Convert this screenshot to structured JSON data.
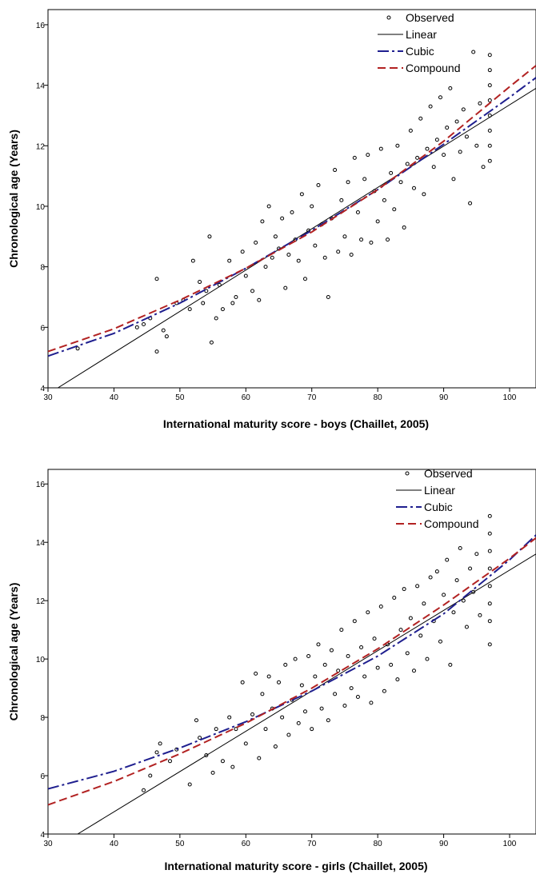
{
  "chart_data": [
    {
      "type": "scatter",
      "xlabel": "International maturity score - boys (Chaillet, 2005)",
      "ylabel": "Chronological age (Years)",
      "xlim": [
        30,
        104
      ],
      "ylim": [
        4,
        16.5
      ],
      "xticks": [
        30,
        40,
        50,
        60,
        70,
        80,
        90,
        100
      ],
      "yticks": [
        4,
        6,
        8,
        10,
        12,
        14,
        16
      ],
      "grid": false,
      "legend_position": "top-right",
      "legend": [
        "Observed",
        "Linear",
        "Cubic",
        "Compound"
      ],
      "series": [
        {
          "name": "Observed",
          "kind": "points",
          "color": "#000000",
          "points": [
            [
              34.5,
              5.3
            ],
            [
              43.5,
              6.0
            ],
            [
              44.5,
              6.1
            ],
            [
              45.5,
              6.3
            ],
            [
              46.5,
              5.2
            ],
            [
              46.5,
              7.6
            ],
            [
              47.5,
              5.9
            ],
            [
              48.0,
              5.7
            ],
            [
              49.5,
              6.8
            ],
            [
              50.5,
              6.9
            ],
            [
              51.5,
              6.6
            ],
            [
              52.0,
              8.2
            ],
            [
              53.0,
              7.5
            ],
            [
              53.5,
              6.8
            ],
            [
              54.0,
              7.2
            ],
            [
              54.5,
              9.0
            ],
            [
              54.8,
              5.5
            ],
            [
              55.5,
              6.3
            ],
            [
              56.0,
              7.4
            ],
            [
              56.5,
              6.6
            ],
            [
              57.5,
              8.2
            ],
            [
              58.0,
              6.8
            ],
            [
              58.5,
              7.0
            ],
            [
              59.5,
              8.5
            ],
            [
              60.0,
              7.7
            ],
            [
              61.0,
              7.2
            ],
            [
              61.5,
              8.8
            ],
            [
              62.0,
              6.9
            ],
            [
              62.5,
              9.5
            ],
            [
              63.0,
              8.0
            ],
            [
              63.5,
              10.0
            ],
            [
              64.0,
              8.3
            ],
            [
              64.5,
              9.0
            ],
            [
              65.0,
              8.6
            ],
            [
              65.5,
              9.6
            ],
            [
              66.0,
              7.3
            ],
            [
              66.5,
              8.4
            ],
            [
              67.0,
              9.8
            ],
            [
              67.5,
              8.9
            ],
            [
              68.0,
              8.2
            ],
            [
              68.5,
              10.4
            ],
            [
              69.0,
              7.6
            ],
            [
              69.5,
              9.2
            ],
            [
              70.0,
              10.0
            ],
            [
              70.5,
              8.7
            ],
            [
              71.0,
              10.7
            ],
            [
              71.5,
              9.4
            ],
            [
              72.0,
              8.3
            ],
            [
              72.5,
              7.0
            ],
            [
              73.0,
              9.6
            ],
            [
              73.5,
              11.2
            ],
            [
              74.0,
              8.5
            ],
            [
              74.5,
              10.2
            ],
            [
              75.0,
              9.0
            ],
            [
              75.5,
              10.8
            ],
            [
              76.0,
              8.4
            ],
            [
              76.5,
              11.6
            ],
            [
              77.0,
              9.8
            ],
            [
              77.5,
              8.9
            ],
            [
              78.0,
              10.9
            ],
            [
              78.5,
              11.7
            ],
            [
              79.0,
              8.8
            ],
            [
              79.5,
              10.5
            ],
            [
              80.0,
              9.5
            ],
            [
              80.5,
              11.9
            ],
            [
              81.0,
              10.2
            ],
            [
              81.5,
              8.9
            ],
            [
              82.0,
              11.1
            ],
            [
              82.5,
              9.9
            ],
            [
              83.0,
              12.0
            ],
            [
              83.5,
              10.8
            ],
            [
              84.0,
              9.3
            ],
            [
              84.5,
              11.4
            ],
            [
              85.0,
              12.5
            ],
            [
              85.5,
              10.6
            ],
            [
              86.0,
              11.6
            ],
            [
              86.5,
              12.9
            ],
            [
              87.0,
              10.4
            ],
            [
              87.5,
              11.9
            ],
            [
              88.0,
              13.3
            ],
            [
              88.5,
              11.3
            ],
            [
              89.0,
              12.2
            ],
            [
              89.5,
              13.6
            ],
            [
              90.0,
              11.7
            ],
            [
              90.5,
              12.6
            ],
            [
              91.0,
              13.9
            ],
            [
              91.5,
              10.9
            ],
            [
              92.0,
              12.8
            ],
            [
              92.5,
              11.8
            ],
            [
              93.0,
              13.2
            ],
            [
              93.5,
              12.3
            ],
            [
              94.0,
              10.1
            ],
            [
              94.5,
              15.1
            ],
            [
              95.0,
              12.0
            ],
            [
              95.5,
              13.4
            ],
            [
              96.0,
              11.3
            ],
            [
              97.0,
              15.0
            ],
            [
              97.0,
              14.5
            ],
            [
              97.0,
              14.0
            ],
            [
              97.0,
              13.5
            ],
            [
              97.0,
              13.0
            ],
            [
              97.0,
              12.5
            ],
            [
              97.0,
              12.0
            ],
            [
              97.0,
              11.5
            ]
          ]
        },
        {
          "name": "Linear",
          "kind": "line",
          "color": "#000000",
          "dash": "solid",
          "points": [
            [
              31.5,
              4.0
            ],
            [
              104.0,
              13.9
            ]
          ]
        },
        {
          "name": "Cubic",
          "kind": "line",
          "color": "#1f1f8f",
          "dash": "longdash",
          "points": [
            [
              30,
              5.05
            ],
            [
              40,
              5.8
            ],
            [
              50,
              6.8
            ],
            [
              60,
              7.95
            ],
            [
              70,
              9.2
            ],
            [
              80,
              10.55
            ],
            [
              90,
              12.05
            ],
            [
              100,
              13.6
            ],
            [
              104,
              14.25
            ]
          ]
        },
        {
          "name": "Compound",
          "kind": "line",
          "color": "#b22222",
          "dash": "dashed",
          "points": [
            [
              30,
              5.2
            ],
            [
              40,
              5.95
            ],
            [
              50,
              6.9
            ],
            [
              60,
              7.95
            ],
            [
              70,
              9.15
            ],
            [
              80,
              10.55
            ],
            [
              90,
              12.15
            ],
            [
              100,
              13.95
            ],
            [
              104,
              14.65
            ]
          ]
        }
      ]
    },
    {
      "type": "scatter",
      "xlabel": "International maturity score - girls (Chaillet, 2005)",
      "ylabel": "Chronological age (Years)",
      "xlim": [
        30,
        104
      ],
      "ylim": [
        4,
        16.5
      ],
      "xticks": [
        30,
        40,
        50,
        60,
        70,
        80,
        90,
        100
      ],
      "yticks": [
        4,
        6,
        8,
        10,
        12,
        14,
        16
      ],
      "grid": false,
      "legend_position": "top-right",
      "legend": [
        "Observed",
        "Linear",
        "Cubic",
        "Compound"
      ],
      "series": [
        {
          "name": "Observed",
          "kind": "points",
          "color": "#000000",
          "points": [
            [
              44.5,
              5.5
            ],
            [
              45.5,
              6.0
            ],
            [
              46.5,
              6.8
            ],
            [
              47.0,
              7.1
            ],
            [
              48.5,
              6.5
            ],
            [
              49.5,
              6.9
            ],
            [
              51.5,
              5.7
            ],
            [
              52.5,
              7.9
            ],
            [
              53.0,
              7.3
            ],
            [
              54.0,
              6.7
            ],
            [
              55.0,
              6.1
            ],
            [
              55.5,
              7.6
            ],
            [
              56.5,
              6.5
            ],
            [
              57.5,
              8.0
            ],
            [
              58.0,
              6.3
            ],
            [
              58.5,
              7.6
            ],
            [
              59.5,
              9.2
            ],
            [
              60.0,
              7.1
            ],
            [
              61.0,
              8.1
            ],
            [
              61.5,
              9.5
            ],
            [
              62.0,
              6.6
            ],
            [
              62.5,
              8.8
            ],
            [
              63.0,
              7.6
            ],
            [
              63.5,
              9.4
            ],
            [
              64.0,
              8.3
            ],
            [
              64.5,
              7.0
            ],
            [
              65.0,
              9.2
            ],
            [
              65.5,
              8.0
            ],
            [
              66.0,
              9.8
            ],
            [
              66.5,
              7.4
            ],
            [
              67.0,
              8.6
            ],
            [
              67.5,
              10.0
            ],
            [
              68.0,
              7.8
            ],
            [
              68.5,
              9.1
            ],
            [
              69.0,
              8.2
            ],
            [
              69.5,
              10.1
            ],
            [
              70.0,
              7.6
            ],
            [
              70.5,
              9.4
            ],
            [
              71.0,
              10.5
            ],
            [
              71.5,
              8.3
            ],
            [
              72.0,
              9.8
            ],
            [
              72.5,
              7.9
            ],
            [
              73.0,
              10.3
            ],
            [
              73.5,
              8.8
            ],
            [
              74.0,
              9.6
            ],
            [
              74.5,
              11.0
            ],
            [
              75.0,
              8.4
            ],
            [
              75.5,
              10.1
            ],
            [
              76.0,
              9.0
            ],
            [
              76.5,
              11.3
            ],
            [
              77.0,
              8.7
            ],
            [
              77.5,
              10.4
            ],
            [
              78.0,
              9.4
            ],
            [
              78.5,
              11.6
            ],
            [
              79.0,
              8.5
            ],
            [
              79.5,
              10.7
            ],
            [
              80.0,
              9.7
            ],
            [
              80.5,
              11.8
            ],
            [
              81.0,
              8.9
            ],
            [
              81.5,
              10.5
            ],
            [
              82.0,
              9.8
            ],
            [
              82.5,
              12.1
            ],
            [
              83.0,
              9.3
            ],
            [
              83.5,
              11.0
            ],
            [
              84.0,
              12.4
            ],
            [
              84.5,
              10.2
            ],
            [
              85.0,
              11.4
            ],
            [
              85.5,
              9.6
            ],
            [
              86.0,
              12.5
            ],
            [
              86.5,
              10.8
            ],
            [
              87.0,
              11.9
            ],
            [
              87.5,
              10.0
            ],
            [
              88.0,
              12.8
            ],
            [
              88.5,
              11.3
            ],
            [
              89.0,
              13.0
            ],
            [
              89.5,
              10.6
            ],
            [
              90.0,
              12.2
            ],
            [
              90.5,
              13.4
            ],
            [
              91.0,
              9.8
            ],
            [
              91.5,
              11.6
            ],
            [
              92.0,
              12.7
            ],
            [
              92.5,
              13.8
            ],
            [
              93.0,
              12.0
            ],
            [
              93.5,
              11.1
            ],
            [
              94.0,
              13.1
            ],
            [
              94.5,
              12.3
            ],
            [
              95.0,
              13.6
            ],
            [
              95.5,
              11.5
            ],
            [
              97.0,
              14.9
            ],
            [
              97.0,
              14.3
            ],
            [
              97.0,
              13.7
            ],
            [
              97.0,
              13.1
            ],
            [
              97.0,
              12.5
            ],
            [
              97.0,
              11.9
            ],
            [
              97.0,
              11.3
            ],
            [
              97.0,
              10.5
            ]
          ]
        },
        {
          "name": "Linear",
          "kind": "line",
          "color": "#000000",
          "dash": "solid",
          "points": [
            [
              34.5,
              4.0
            ],
            [
              104.0,
              13.6
            ]
          ]
        },
        {
          "name": "Cubic",
          "kind": "line",
          "color": "#1f1f8f",
          "dash": "longdash",
          "points": [
            [
              30,
              5.55
            ],
            [
              40,
              6.15
            ],
            [
              50,
              6.95
            ],
            [
              60,
              7.85
            ],
            [
              70,
              8.9
            ],
            [
              80,
              10.1
            ],
            [
              90,
              11.55
            ],
            [
              100,
              13.4
            ],
            [
              104,
              14.25
            ]
          ]
        },
        {
          "name": "Compound",
          "kind": "line",
          "color": "#b22222",
          "dash": "dashed",
          "points": [
            [
              30,
              5.0
            ],
            [
              40,
              5.8
            ],
            [
              50,
              6.75
            ],
            [
              60,
              7.8
            ],
            [
              70,
              9.0
            ],
            [
              80,
              10.35
            ],
            [
              90,
              11.85
            ],
            [
              100,
              13.45
            ],
            [
              104,
              14.15
            ]
          ]
        }
      ]
    }
  ]
}
